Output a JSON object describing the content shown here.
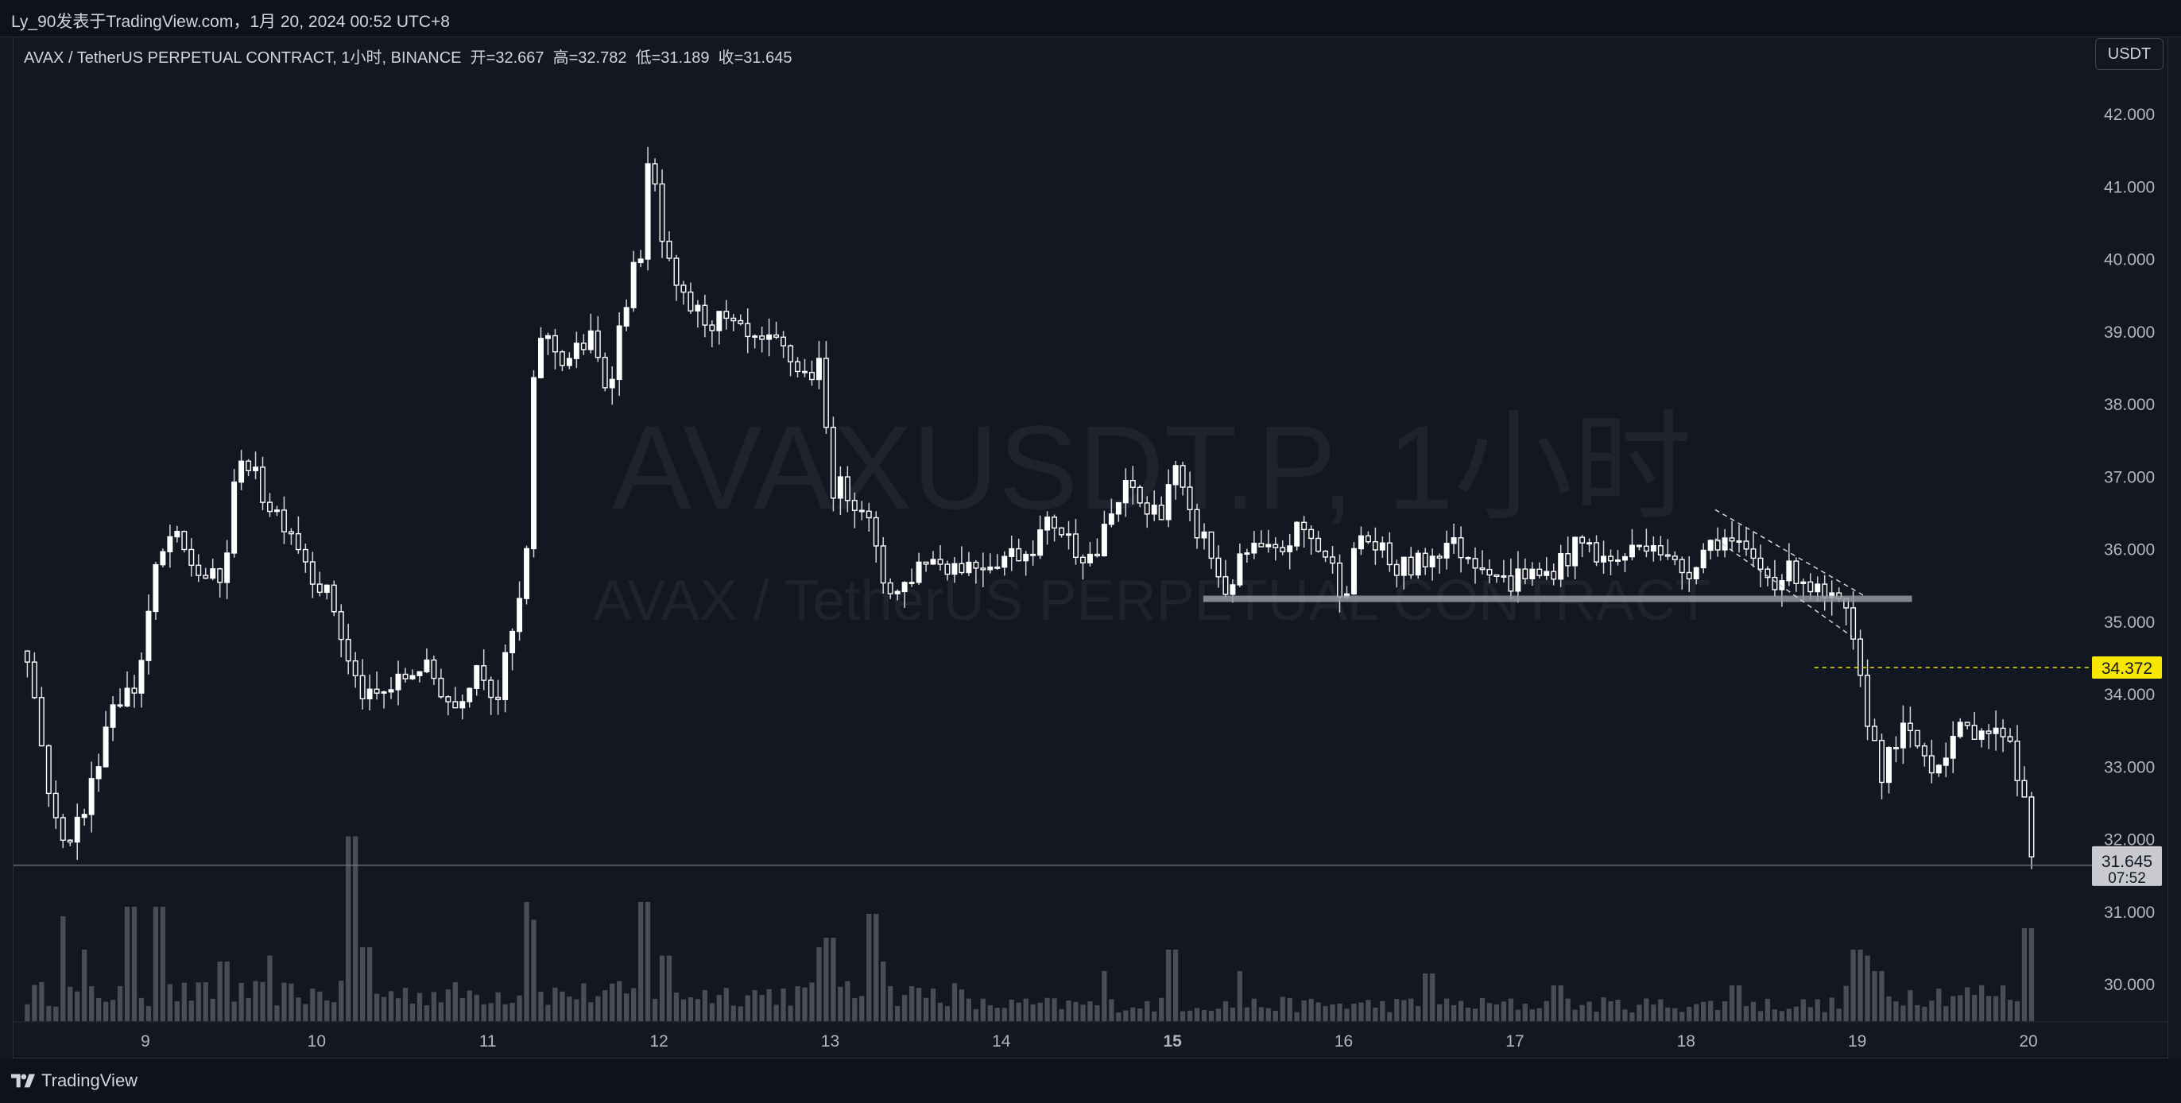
{
  "header": {
    "publisher": "Ly_90发表于TradingView.com，1月 20, 2024 00:52 UTC+8"
  },
  "legend": {
    "symbol": "AVAX / TetherUS PERPETUAL CONTRACT, 1小时, BINANCE",
    "open_label": "开=32.667",
    "high_label": "高=32.782",
    "low_label": "低=31.189",
    "close_label": "收=31.645"
  },
  "currency_button": "USDT",
  "watermark": {
    "line1": "AVAXUSDT.P, 1小时",
    "line2": "AVAX / TetherUS PERPETUAL CONTRACT"
  },
  "footer": {
    "brand": "TradingView"
  },
  "colors": {
    "background": "#131722",
    "candle": "#ffffff",
    "volume": "#5d606b",
    "alert_line": "#f7e600",
    "support_zone": "#9598a1"
  },
  "chart_data": {
    "type": "candlestick",
    "interval": "1h",
    "y_ticks": [
      "42.000",
      "41.000",
      "40.000",
      "39.000",
      "38.000",
      "37.000",
      "36.000",
      "35.000",
      "34.000",
      "33.000",
      "32.000",
      "31.000",
      "30.000"
    ],
    "ylim": [
      29.5,
      42.5
    ],
    "x_ticks": [
      {
        "label": "9",
        "bold": false
      },
      {
        "label": "10",
        "bold": false
      },
      {
        "label": "11",
        "bold": false
      },
      {
        "label": "12",
        "bold": false
      },
      {
        "label": "13",
        "bold": false
      },
      {
        "label": "14",
        "bold": false
      },
      {
        "label": "15",
        "bold": true
      },
      {
        "label": "16",
        "bold": false
      },
      {
        "label": "17",
        "bold": false
      },
      {
        "label": "18",
        "bold": false
      },
      {
        "label": "19",
        "bold": false
      },
      {
        "label": "20",
        "bold": false
      }
    ],
    "x_start_day": 8.31,
    "x_end_day": 20.0,
    "price_path": [
      [
        8.31,
        34.6
      ],
      [
        8.4,
        33.2
      ],
      [
        8.5,
        31.9
      ],
      [
        8.65,
        32.4
      ],
      [
        8.8,
        33.9
      ],
      [
        8.95,
        34.1
      ],
      [
        9.05,
        35.6
      ],
      [
        9.15,
        36.2
      ],
      [
        9.3,
        35.7
      ],
      [
        9.45,
        35.5
      ],
      [
        9.55,
        37.4
      ],
      [
        9.7,
        36.7
      ],
      [
        9.85,
        36.3
      ],
      [
        9.95,
        35.8
      ],
      [
        10.1,
        35.2
      ],
      [
        10.2,
        34.3
      ],
      [
        10.3,
        33.9
      ],
      [
        10.45,
        34.1
      ],
      [
        10.6,
        34.4
      ],
      [
        10.7,
        34.2
      ],
      [
        10.8,
        33.8
      ],
      [
        10.95,
        34.5
      ],
      [
        11.05,
        33.9
      ],
      [
        11.15,
        34.9
      ],
      [
        11.22,
        35.6
      ],
      [
        11.27,
        38.3
      ],
      [
        11.3,
        39.0
      ],
      [
        11.45,
        38.6
      ],
      [
        11.6,
        38.9
      ],
      [
        11.7,
        38.2
      ],
      [
        11.8,
        39.4
      ],
      [
        11.9,
        40.2
      ],
      [
        11.95,
        41.6
      ],
      [
        12.0,
        40.4
      ],
      [
        12.1,
        39.5
      ],
      [
        12.25,
        39.2
      ],
      [
        12.4,
        39.1
      ],
      [
        12.55,
        38.8
      ],
      [
        12.7,
        38.8
      ],
      [
        12.85,
        38.4
      ],
      [
        12.95,
        38.5
      ],
      [
        13.0,
        36.9
      ],
      [
        13.1,
        36.8
      ],
      [
        13.2,
        36.6
      ],
      [
        13.3,
        35.6
      ],
      [
        13.4,
        35.4
      ],
      [
        13.55,
        35.9
      ],
      [
        13.7,
        35.8
      ],
      [
        13.85,
        35.8
      ],
      [
        14.0,
        35.9
      ],
      [
        14.15,
        36.0
      ],
      [
        14.3,
        36.4
      ],
      [
        14.45,
        36.0
      ],
      [
        14.55,
        35.9
      ],
      [
        14.65,
        36.5
      ],
      [
        14.75,
        36.9
      ],
      [
        14.85,
        36.5
      ],
      [
        14.95,
        36.6
      ],
      [
        15.0,
        37.2
      ],
      [
        15.1,
        36.4
      ],
      [
        15.2,
        36.1
      ],
      [
        15.3,
        35.4
      ],
      [
        15.45,
        36.0
      ],
      [
        15.6,
        35.9
      ],
      [
        15.75,
        36.3
      ],
      [
        15.9,
        35.9
      ],
      [
        16.0,
        35.4
      ],
      [
        16.1,
        36.2
      ],
      [
        16.2,
        36.0
      ],
      [
        16.3,
        35.7
      ],
      [
        16.45,
        35.8
      ],
      [
        16.6,
        36.1
      ],
      [
        16.75,
        35.9
      ],
      [
        16.85,
        35.8
      ],
      [
        16.95,
        35.5
      ],
      [
        17.05,
        35.7
      ],
      [
        17.15,
        35.6
      ],
      [
        17.25,
        35.8
      ],
      [
        17.4,
        36.1
      ],
      [
        17.55,
        35.8
      ],
      [
        17.7,
        36.0
      ],
      [
        17.8,
        36.2
      ],
      [
        17.9,
        35.8
      ],
      [
        18.0,
        35.7
      ],
      [
        18.1,
        36.0
      ],
      [
        18.2,
        36.2
      ],
      [
        18.35,
        35.9
      ],
      [
        18.5,
        35.6
      ],
      [
        18.65,
        35.7
      ],
      [
        18.8,
        35.3
      ],
      [
        18.9,
        35.2
      ],
      [
        18.95,
        35.0
      ],
      [
        19.0,
        34.3
      ],
      [
        19.07,
        33.6
      ],
      [
        19.15,
        32.9
      ],
      [
        19.25,
        33.5
      ],
      [
        19.35,
        33.3
      ],
      [
        19.45,
        33.0
      ],
      [
        19.55,
        33.4
      ],
      [
        19.65,
        33.5
      ],
      [
        19.72,
        33.6
      ],
      [
        19.8,
        33.4
      ],
      [
        19.88,
        33.6
      ],
      [
        19.93,
        32.9
      ],
      [
        19.98,
        32.7
      ],
      [
        20.0,
        31.64
      ]
    ],
    "volume_spikes": [
      [
        8.51,
        0.88
      ],
      [
        8.65,
        0.6
      ],
      [
        8.92,
        0.96
      ],
      [
        9.08,
        0.96
      ],
      [
        9.45,
        0.5
      ],
      [
        9.72,
        0.55
      ],
      [
        10.2,
        1.55
      ],
      [
        10.28,
        0.62
      ],
      [
        11.22,
        1.0
      ],
      [
        11.26,
        0.85
      ],
      [
        11.9,
        0.95
      ],
      [
        11.92,
        1.0
      ],
      [
        12.05,
        0.55
      ],
      [
        12.95,
        0.62
      ],
      [
        13.0,
        0.7
      ],
      [
        13.25,
        0.9
      ],
      [
        13.3,
        0.5
      ],
      [
        14.6,
        0.42
      ],
      [
        15.0,
        0.6
      ],
      [
        15.4,
        0.42
      ],
      [
        16.5,
        0.4
      ],
      [
        17.25,
        0.3
      ],
      [
        18.3,
        0.3
      ],
      [
        19.0,
        0.6
      ],
      [
        19.05,
        0.55
      ],
      [
        19.12,
        0.42
      ],
      [
        19.97,
        0.7
      ],
      [
        20.0,
        0.78
      ]
    ],
    "last_price": "31.645",
    "countdown": "07:52",
    "alert_price": "34.372",
    "alert_level": 34.372,
    "support_level": 35.32,
    "support_range": [
      15.18,
      19.32
    ],
    "channel": {
      "upper": [
        [
          18.17,
          36.55
        ],
        [
          19.05,
          35.35
        ]
      ],
      "lower": [
        [
          18.17,
          36.15
        ],
        [
          18.97,
          34.8
        ]
      ]
    }
  }
}
